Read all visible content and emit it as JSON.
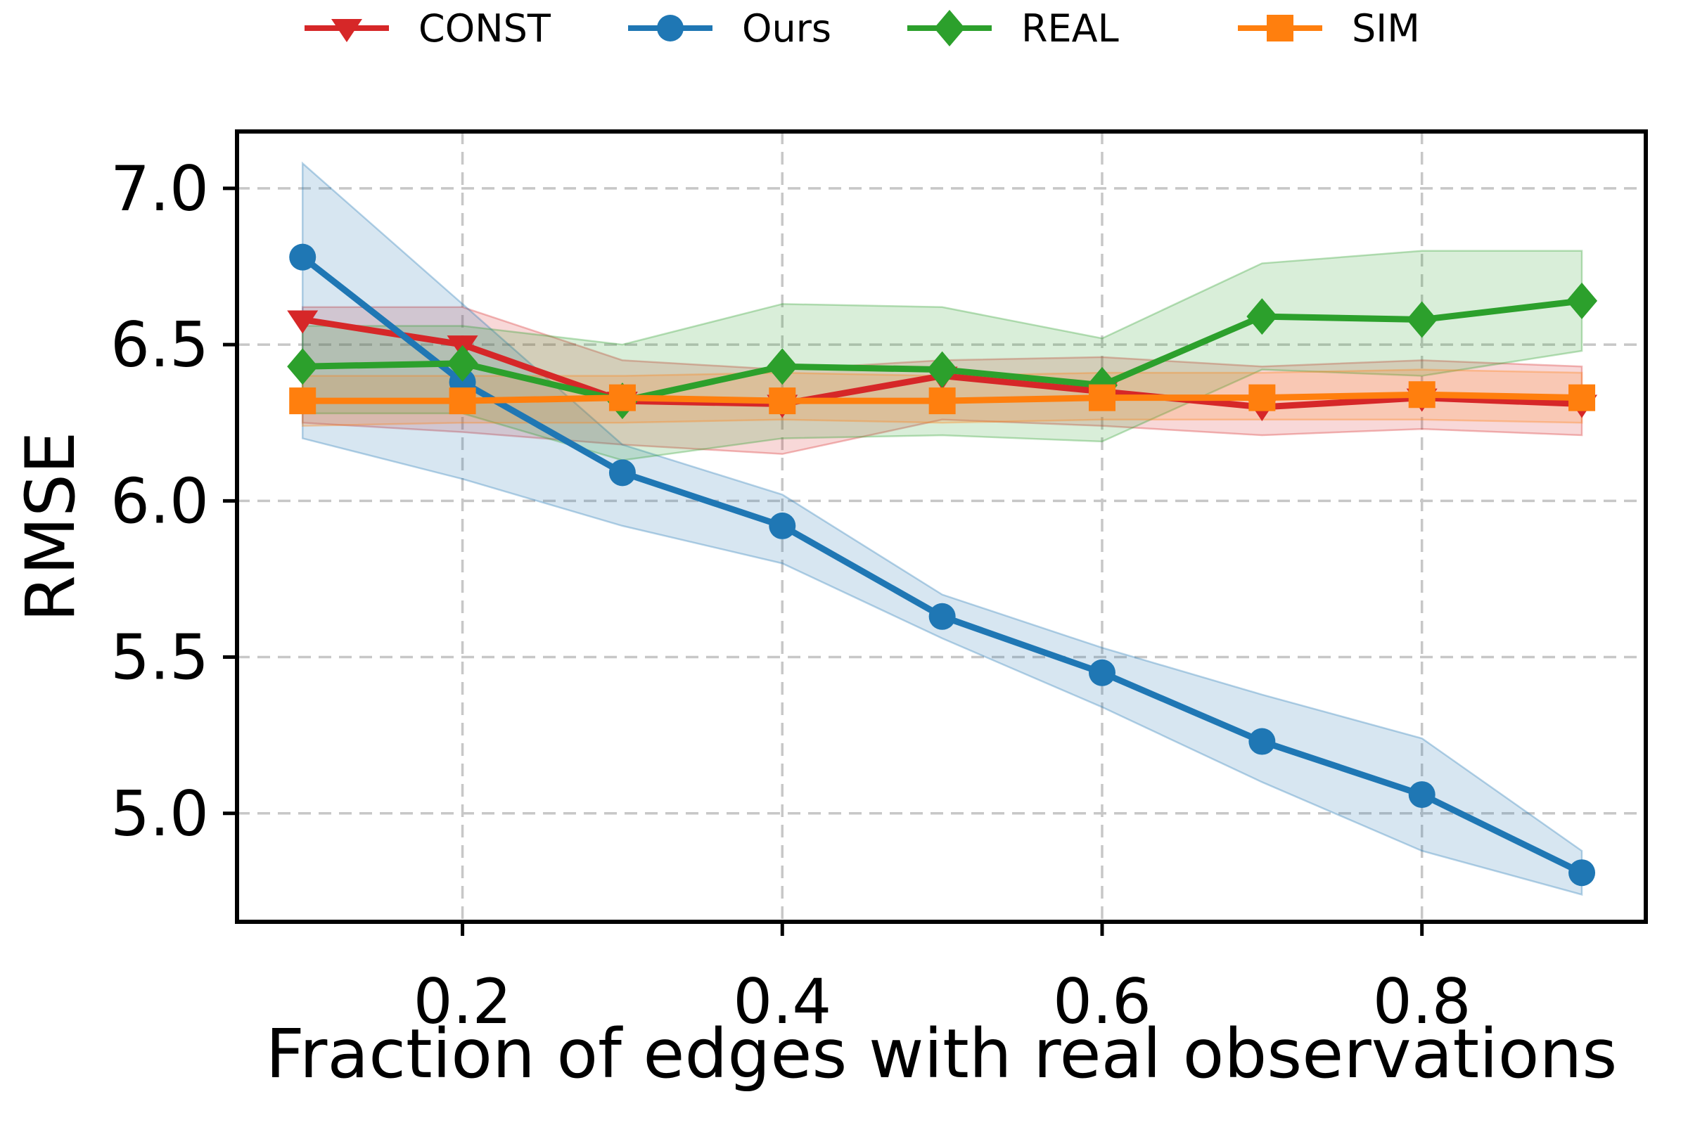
{
  "figure": {
    "background": "#ffffff",
    "grid_color": "#c7c7c7",
    "spine_color": "#000000"
  },
  "legend": {
    "position": "top",
    "items": [
      {
        "label": "CONST",
        "color": "#d62728",
        "marker": "triangle-down-icon"
      },
      {
        "label": "Ours",
        "color": "#1f77b4",
        "marker": "circle-icon"
      },
      {
        "label": "REAL",
        "color": "#2ca02c",
        "marker": "diamond-icon"
      },
      {
        "label": "SIM",
        "color": "#ff7f0e",
        "marker": "square-icon"
      }
    ]
  },
  "chart_data": {
    "type": "line",
    "title": "",
    "xlabel": "Fraction of edges with real observations",
    "ylabel": "RMSE",
    "x": [
      0.1,
      0.2,
      0.3,
      0.4,
      0.5,
      0.6,
      0.7,
      0.8,
      0.9
    ],
    "xticks": [
      0.2,
      0.4,
      0.6,
      0.8
    ],
    "xtick_labels": [
      "0.2",
      "0.4",
      "0.6",
      "0.8"
    ],
    "yticks": [
      5.0,
      5.5,
      6.0,
      6.5,
      7.0
    ],
    "ytick_labels": [
      "5.0",
      "5.5",
      "6.0",
      "6.5",
      "7.0"
    ],
    "xlim": [
      0.059,
      0.94
    ],
    "ylim": [
      4.653,
      7.182
    ],
    "grid": true,
    "legend_position": "top",
    "series": [
      {
        "name": "CONST",
        "color": "#d62728",
        "marker": "triangle-down",
        "values": [
          6.58,
          6.5,
          6.32,
          6.31,
          6.4,
          6.35,
          6.3,
          6.33,
          6.31
        ],
        "band_low": [
          6.25,
          6.22,
          6.18,
          6.15,
          6.26,
          6.24,
          6.21,
          6.23,
          6.21
        ],
        "band_high": [
          6.62,
          6.62,
          6.45,
          6.42,
          6.45,
          6.46,
          6.43,
          6.45,
          6.43
        ]
      },
      {
        "name": "Ours",
        "color": "#1f77b4",
        "marker": "circle",
        "values": [
          6.78,
          6.38,
          6.09,
          5.92,
          5.63,
          5.45,
          5.23,
          5.06,
          4.81
        ],
        "band_low": [
          6.2,
          6.07,
          5.92,
          5.8,
          5.56,
          5.34,
          5.1,
          4.88,
          4.74
        ],
        "band_high": [
          7.08,
          6.63,
          6.18,
          6.02,
          5.7,
          5.53,
          5.38,
          5.24,
          4.88
        ]
      },
      {
        "name": "REAL",
        "color": "#2ca02c",
        "marker": "diamond",
        "values": [
          6.43,
          6.44,
          6.32,
          6.43,
          6.42,
          6.37,
          6.59,
          6.58,
          6.64
        ],
        "band_low": [
          6.28,
          6.28,
          6.13,
          6.2,
          6.21,
          6.19,
          6.42,
          6.4,
          6.48
        ],
        "band_high": [
          6.56,
          6.56,
          6.5,
          6.63,
          6.62,
          6.52,
          6.76,
          6.8,
          6.8
        ]
      },
      {
        "name": "SIM",
        "color": "#ff7f0e",
        "marker": "square",
        "values": [
          6.32,
          6.32,
          6.33,
          6.32,
          6.32,
          6.33,
          6.33,
          6.34,
          6.33
        ],
        "band_low": [
          6.24,
          6.25,
          6.25,
          6.26,
          6.25,
          6.26,
          6.26,
          6.26,
          6.25
        ],
        "band_high": [
          6.4,
          6.4,
          6.4,
          6.41,
          6.4,
          6.41,
          6.41,
          6.42,
          6.41
        ]
      }
    ]
  }
}
